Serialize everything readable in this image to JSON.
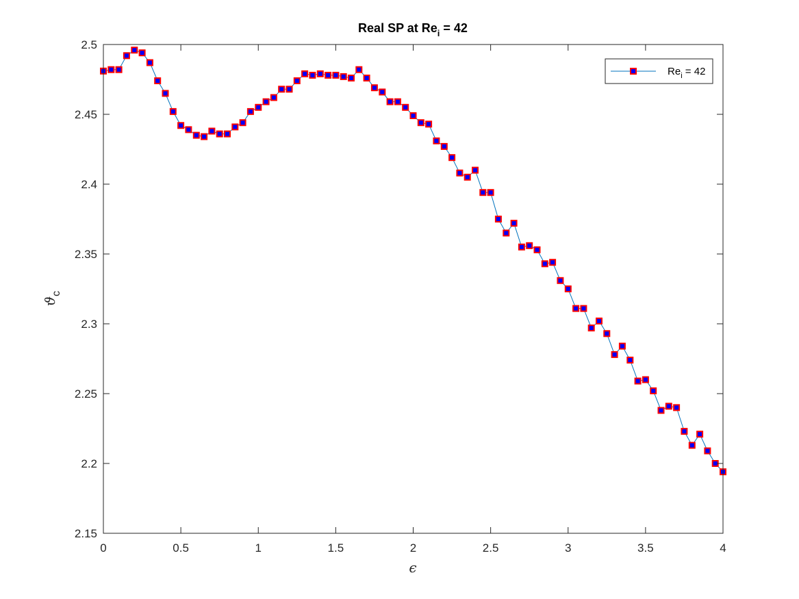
{
  "chart_data": {
    "type": "line",
    "title": {
      "main": "Real SP at Re",
      "sub": "i",
      "tail": " = 42"
    },
    "xlabel": "ϵ",
    "ylabel": {
      "main": "ϑ",
      "sub": "c"
    },
    "xlim": [
      0,
      4
    ],
    "ylim": [
      2.15,
      2.5
    ],
    "xticks": [
      0,
      0.5,
      1,
      1.5,
      2,
      2.5,
      3,
      3.5,
      4
    ],
    "xtick_labels": [
      "0",
      "0.5",
      "1",
      "1.5",
      "2",
      "2.5",
      "3",
      "3.5",
      "4"
    ],
    "yticks": [
      2.15,
      2.2,
      2.25,
      2.3,
      2.35,
      2.4,
      2.45,
      2.5
    ],
    "ytick_labels": [
      "2.15",
      "2.2",
      "2.25",
      "2.3",
      "2.35",
      "2.4",
      "2.45",
      "2.5"
    ],
    "grid": false,
    "legend_position": "top-right",
    "series": [
      {
        "name": {
          "main": "Re",
          "sub": "i",
          "tail": " = 42"
        },
        "line_color": "#0072BD",
        "marker": "square",
        "marker_edge_color": "#FF0000",
        "marker_face_color": "#0000FF",
        "x": [
          0,
          0.05,
          0.1,
          0.15,
          0.2,
          0.25,
          0.3,
          0.35,
          0.4,
          0.45,
          0.5,
          0.55,
          0.6,
          0.65,
          0.7,
          0.75,
          0.8,
          0.85,
          0.9,
          0.95,
          1.0,
          1.05,
          1.1,
          1.15,
          1.2,
          1.25,
          1.3,
          1.35,
          1.4,
          1.45,
          1.5,
          1.55,
          1.6,
          1.65,
          1.7,
          1.75,
          1.8,
          1.85,
          1.9,
          1.95,
          2.0,
          2.05,
          2.1,
          2.15,
          2.2,
          2.25,
          2.3,
          2.35,
          2.4,
          2.45,
          2.5,
          2.55,
          2.6,
          2.65,
          2.7,
          2.75,
          2.8,
          2.85,
          2.9,
          2.95,
          3.0,
          3.05,
          3.1,
          3.15,
          3.2,
          3.25,
          3.3,
          3.35,
          3.4,
          3.45,
          3.5,
          3.55,
          3.6,
          3.65,
          3.7,
          3.75,
          3.8,
          3.85,
          3.9,
          3.95,
          4.0
        ],
        "y": [
          2.481,
          2.482,
          2.482,
          2.492,
          2.496,
          2.494,
          2.487,
          2.474,
          2.465,
          2.452,
          2.442,
          2.439,
          2.435,
          2.434,
          2.438,
          2.436,
          2.436,
          2.441,
          2.444,
          2.452,
          2.455,
          2.459,
          2.462,
          2.468,
          2.468,
          2.474,
          2.479,
          2.478,
          2.479,
          2.478,
          2.478,
          2.477,
          2.476,
          2.482,
          2.476,
          2.469,
          2.466,
          2.459,
          2.459,
          2.455,
          2.449,
          2.444,
          2.443,
          2.431,
          2.427,
          2.419,
          2.408,
          2.405,
          2.41,
          2.394,
          2.394,
          2.375,
          2.365,
          2.372,
          2.355,
          2.356,
          2.353,
          2.343,
          2.344,
          2.331,
          2.325,
          2.311,
          2.311,
          2.297,
          2.302,
          2.293,
          2.278,
          2.284,
          2.274,
          2.259,
          2.26,
          2.252,
          2.238,
          2.241,
          2.24,
          2.223,
          2.213,
          2.221,
          2.209,
          2.2,
          2.194
        ]
      }
    ]
  }
}
